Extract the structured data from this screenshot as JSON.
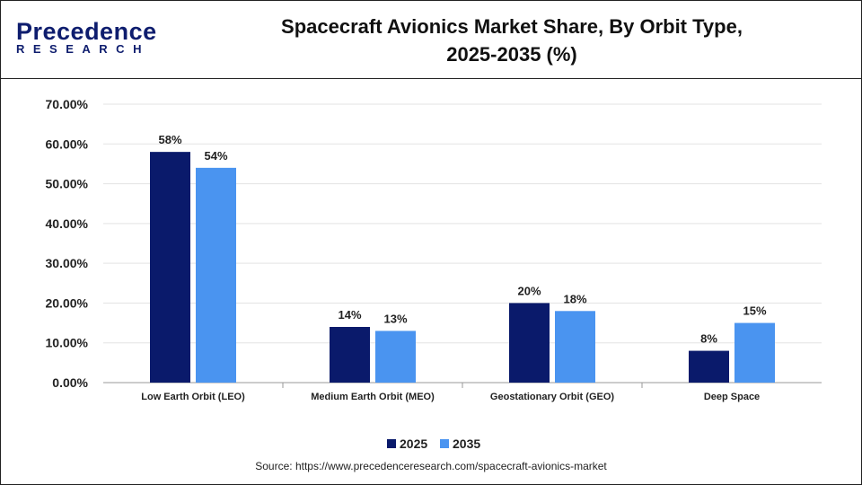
{
  "header": {
    "logo_line1": "Precedence",
    "logo_line2": "RESEARCH",
    "title_line1": "Spacecraft Avionics Market Share, By Orbit Type,",
    "title_line2": "2025-2035 (%)"
  },
  "source": "Source: https://www.precedenceresearch.com/spacecraft-avionics-market",
  "chart_data": {
    "type": "bar",
    "title": "Spacecraft Avionics Market Share, By Orbit Type, 2025-2035 (%)",
    "categories": [
      "Low Earth Orbit (LEO)",
      "Medium Earth Orbit (MEO)",
      "Geostationary Orbit (GEO)",
      "Deep Space"
    ],
    "series": [
      {
        "name": "2025",
        "values": [
          58,
          14,
          20,
          8
        ],
        "labels": [
          "58%",
          "14%",
          "20%",
          "8%"
        ],
        "color": "#0a1a6b"
      },
      {
        "name": "2035",
        "values": [
          54,
          13,
          18,
          15
        ],
        "labels": [
          "54%",
          "13%",
          "18%",
          "15%"
        ],
        "color": "#4a94f0"
      }
    ],
    "yticks": [
      "0.00%",
      "10.00%",
      "20.00%",
      "30.00%",
      "40.00%",
      "50.00%",
      "60.00%",
      "70.00%"
    ],
    "ylim": [
      0,
      70
    ],
    "grid": true,
    "legend": "bottom"
  }
}
